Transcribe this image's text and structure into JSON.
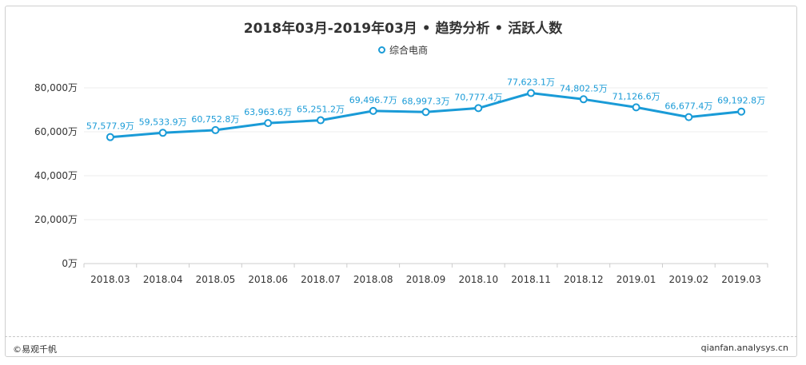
{
  "chart_data": {
    "type": "line",
    "title": "2018年03月-2019年03月 • 趋势分析 • 活跃人数",
    "categories": [
      "2018.03",
      "2018.04",
      "2018.05",
      "2018.06",
      "2018.07",
      "2018.08",
      "2018.09",
      "2018.10",
      "2018.11",
      "2018.12",
      "2019.01",
      "2019.02",
      "2019.03"
    ],
    "series": [
      {
        "name": "综合电商",
        "values": [
          57577.9,
          59533.9,
          60752.8,
          63963.6,
          65251.2,
          69496.7,
          68997.3,
          70777.4,
          77623.1,
          74802.5,
          71126.6,
          66677.4,
          69192.8
        ],
        "labels": [
          "57,577.9万",
          "59,533.9万",
          "60,752.8万",
          "63,963.6万",
          "65,251.2万",
          "69,496.7万",
          "68,997.3万",
          "70,777.4万",
          "77,623.1万",
          "74,802.5万",
          "71,126.6万",
          "66,677.4万",
          "69,192.8万"
        ]
      }
    ],
    "y_ticks": [
      0,
      20000,
      40000,
      60000,
      80000
    ],
    "y_tick_labels": [
      "0万",
      "20,000万",
      "40,000万",
      "60,000万",
      "80,000万"
    ],
    "ylim": [
      0,
      80000
    ],
    "xlabel": "",
    "ylabel": "",
    "grid": true,
    "legend_position": "top-center",
    "colors": {
      "line": "#1a9bd7",
      "label": "#1a9bd7",
      "grid": "#ededed",
      "axis": "#cccccc"
    }
  },
  "footer": {
    "left": "©易观千帆",
    "right": "qianfan.analysys.cn"
  }
}
